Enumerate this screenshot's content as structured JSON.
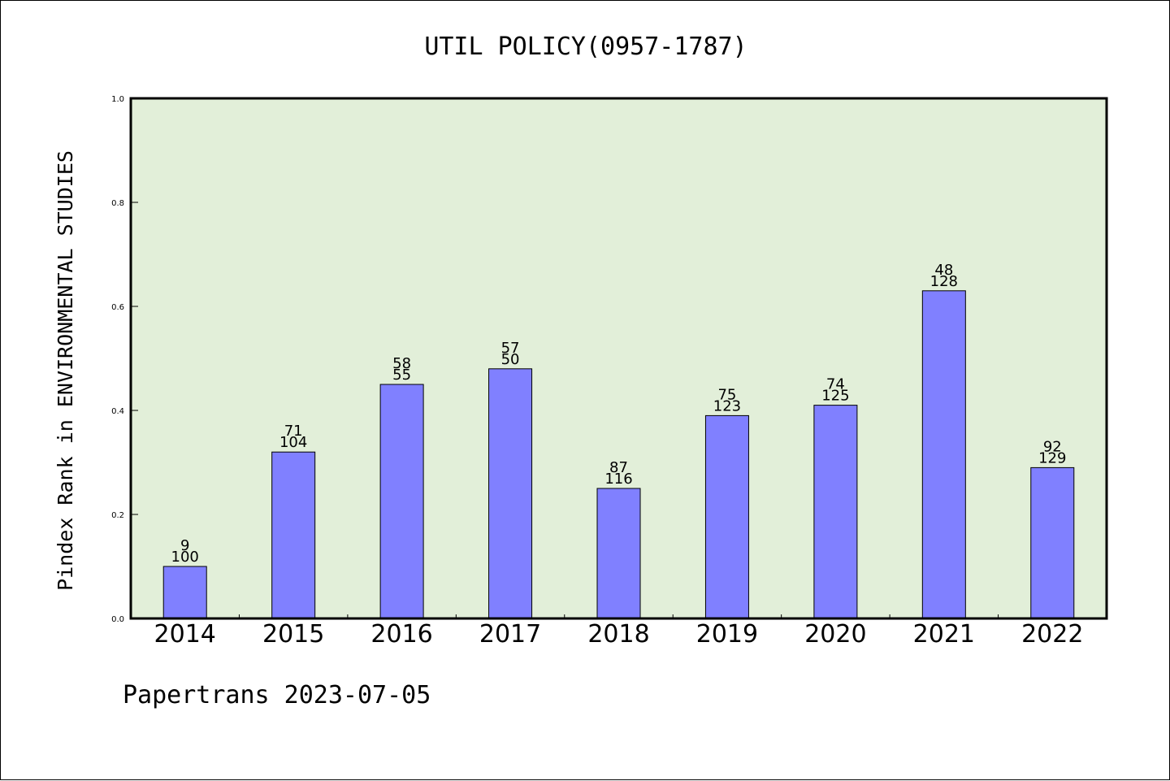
{
  "chart_data": {
    "type": "bar",
    "title": "UTIL POLICY(0957-1787)",
    "xlabel": "",
    "ylabel": "Pindex Rank in ENVIRONMENTAL STUDIES",
    "categories": [
      "2014",
      "2015",
      "2016",
      "2017",
      "2018",
      "2019",
      "2020",
      "2021",
      "2022"
    ],
    "values": [
      0.1,
      0.32,
      0.45,
      0.48,
      0.25,
      0.39,
      0.41,
      0.63,
      0.29
    ],
    "labels_top": [
      "9",
      "71",
      "58",
      "57",
      "87",
      "75",
      "74",
      "48",
      "92"
    ],
    "labels_bottom": [
      "100",
      "104",
      "55",
      "50",
      "116",
      "123",
      "125",
      "128",
      "129"
    ],
    "ylim": [
      0,
      1.0
    ],
    "yticks": [
      "0.0",
      "0.2",
      "0.4",
      "0.6",
      "0.8",
      "1.0"
    ],
    "grid": false,
    "colors": {
      "bar": "#8080ff",
      "plot_background": "#e2efd9",
      "axes": "#000000"
    }
  },
  "footer": "Papertrans 2023-07-05"
}
